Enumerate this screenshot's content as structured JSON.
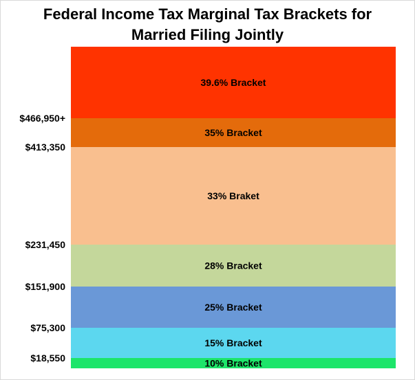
{
  "chart_data": {
    "type": "bar",
    "title": [
      "Federal Income Tax Marginal Tax Brackets for",
      "Married Filing Jointly"
    ],
    "segments": [
      {
        "label": "10% Bracket",
        "color": "#1de56a"
      },
      {
        "label": "15% Bracket",
        "color": "#5cd7ef"
      },
      {
        "label": "25% Bracket",
        "color": "#6a98d7"
      },
      {
        "label": "28% Bracket",
        "color": "#c4d79b"
      },
      {
        "label": "33% Braket",
        "color": "#f9bf8f"
      },
      {
        "label": "35% Bracket",
        "color": "#e46b0b"
      },
      {
        "label": "39.6% Bracket",
        "color": "#ff3300"
      }
    ],
    "thresholds": [
      "$18,550",
      "$75,300",
      "$151,900",
      "$231,450",
      "$413,350",
      "$466,950+"
    ],
    "legend": "none",
    "grid": false
  }
}
